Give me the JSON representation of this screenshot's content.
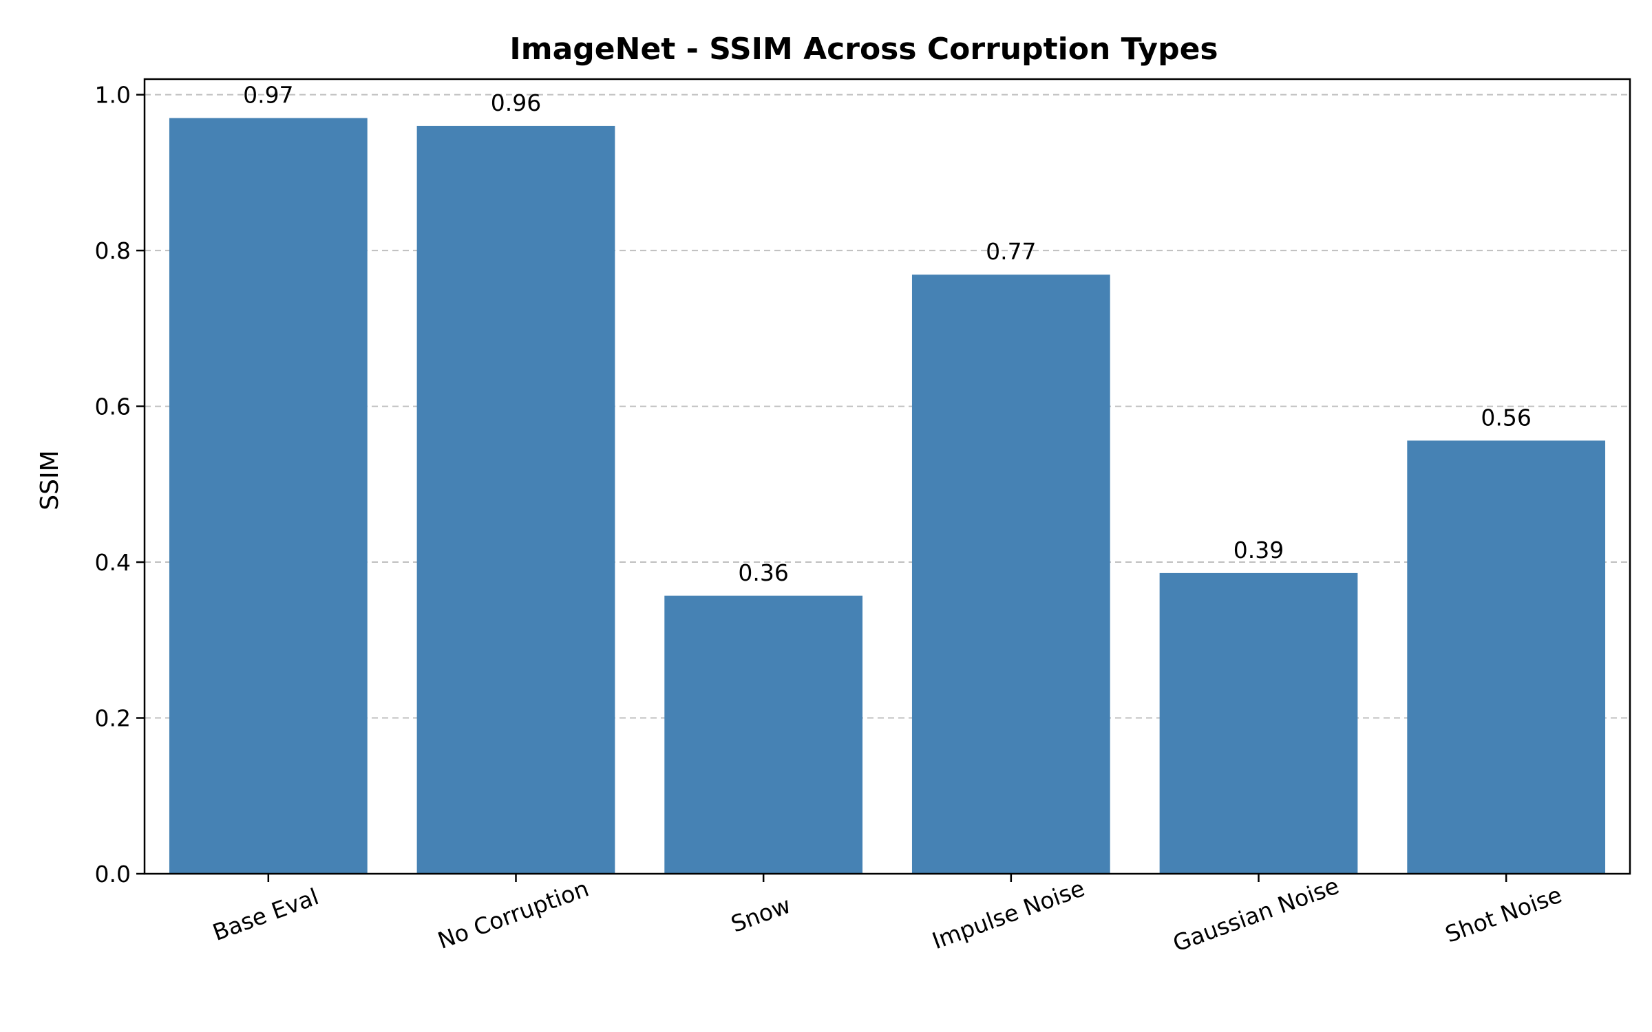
{
  "chart_data": {
    "type": "bar",
    "title": "ImageNet - SSIM Across Corruption Types",
    "xlabel": "",
    "ylabel": "SSIM",
    "categories": [
      "Base Eval",
      "No Corruption",
      "Snow",
      "Impulse Noise",
      "Gaussian Noise",
      "Shot Noise"
    ],
    "values": [
      0.97,
      0.96,
      0.357,
      0.769,
      0.386,
      0.556
    ],
    "value_labels": [
      "0.97",
      "0.96",
      "0.36",
      "0.77",
      "0.39",
      "0.56"
    ],
    "ylim": [
      0,
      1.02
    ],
    "yticks": [
      0.0,
      0.2,
      0.4,
      0.6,
      0.8,
      1.0
    ],
    "ytick_labels": [
      "0.0",
      "0.2",
      "0.4",
      "0.6",
      "0.8",
      "1.0"
    ],
    "xtick_rotation_deg": 20,
    "grid": "y-dashed",
    "legend": "none",
    "bar_color": "#4682b4"
  }
}
